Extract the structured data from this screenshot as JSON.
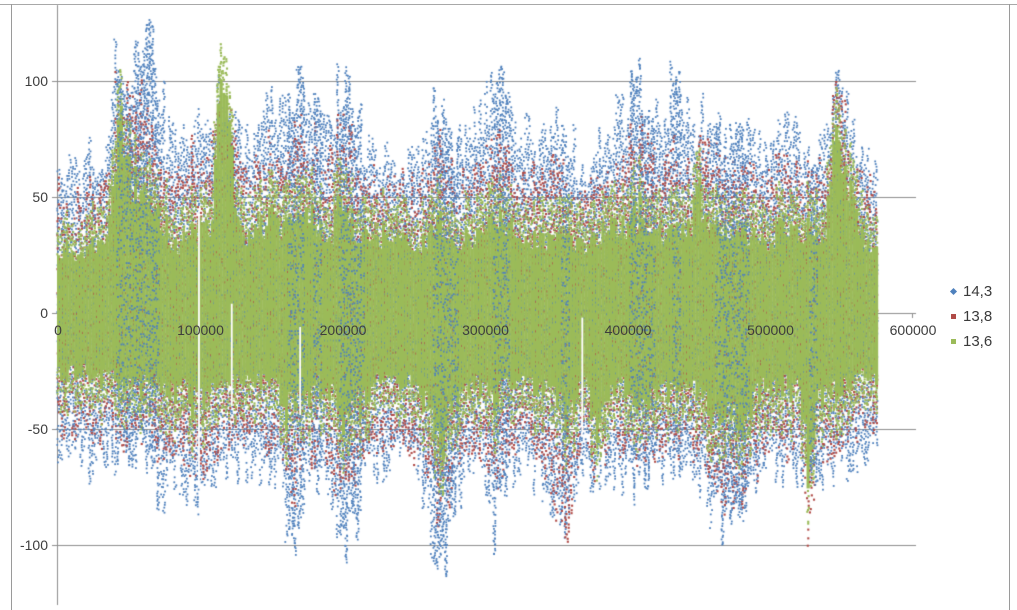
{
  "chart_data": {
    "type": "scatter",
    "title": "",
    "grid": "horizontal",
    "legend_position": "right",
    "x_axis": {
      "min": 0,
      "max": 600000,
      "tick_step": 100000,
      "tick_labels": [
        "0",
        "100000",
        "200000",
        "300000",
        "400000",
        "500000",
        "600000"
      ]
    },
    "y_axis": {
      "min": -133,
      "max": 133,
      "tick_step": 50,
      "tick_labels": [
        "-100",
        "-50",
        "0",
        "50",
        "100"
      ]
    },
    "series": [
      {
        "name": "14,3",
        "color": "#4F81BD",
        "marker": "diamond"
      },
      {
        "name": "13,8",
        "color": "#B04A47",
        "marker": "square"
      },
      {
        "name": "13,6",
        "color": "#9BBB59",
        "marker": "square"
      }
    ],
    "data_x_extent": [
      0,
      570000
    ],
    "envelope_note": "per-6000-unit amplitude envelope [green_hi,green_lo,red_hi,red_lo,blue_hi,blue_lo] estimated from plot",
    "envelope": {
      "x_start": 0,
      "x_step": 6000,
      "columns": [
        [
          42,
          -40,
          54,
          -50,
          66,
          -62
        ],
        [
          40,
          -38,
          50,
          -48,
          62,
          -58
        ],
        [
          38,
          -40,
          46,
          -50,
          58,
          -60
        ],
        [
          40,
          -36,
          48,
          -46,
          60,
          -56
        ],
        [
          44,
          -40,
          54,
          -50,
          72,
          -66
        ],
        [
          40,
          -42,
          50,
          -52,
          64,
          -64
        ],
        [
          46,
          -40,
          58,
          -50,
          76,
          -62
        ],
        [
          95,
          -46,
          100,
          -54,
          108,
          -62
        ],
        [
          88,
          -44,
          92,
          -52,
          100,
          -60
        ],
        [
          70,
          -42,
          85,
          -50,
          112,
          -58
        ],
        [
          78,
          -46,
          98,
          -55,
          126,
          -62
        ],
        [
          72,
          -44,
          90,
          -52,
          118,
          -60
        ],
        [
          58,
          -46,
          70,
          -58,
          95,
          -83
        ],
        [
          50,
          -50,
          62,
          -62,
          80,
          -80
        ],
        [
          44,
          -48,
          56,
          -60,
          68,
          -70
        ],
        [
          46,
          -50,
          60,
          -62,
          74,
          -72
        ],
        [
          50,
          -55,
          68,
          -66,
          84,
          -78
        ],
        [
          48,
          -56,
          66,
          -68,
          82,
          -80
        ],
        [
          52,
          -50,
          70,
          -62,
          86,
          -74
        ],
        [
          106,
          -44,
          100,
          -54,
          90,
          -64
        ],
        [
          100,
          -42,
          95,
          -52,
          88,
          -62
        ],
        [
          60,
          -46,
          72,
          -56,
          85,
          -66
        ],
        [
          50,
          -44,
          62,
          -54,
          76,
          -64
        ],
        [
          46,
          -46,
          58,
          -56,
          72,
          -66
        ],
        [
          52,
          -44,
          66,
          -54,
          84,
          -64
        ],
        [
          56,
          -46,
          70,
          -56,
          88,
          -66
        ],
        [
          50,
          -48,
          64,
          -58,
          80,
          -68
        ],
        [
          55,
          -60,
          72,
          -75,
          92,
          -90
        ],
        [
          60,
          -58,
          78,
          -72,
          100,
          -92
        ],
        [
          54,
          -50,
          70,
          -62,
          94,
          -74
        ],
        [
          56,
          -48,
          72,
          -60,
          98,
          -70
        ],
        [
          50,
          -46,
          64,
          -56,
          84,
          -66
        ],
        [
          48,
          -50,
          62,
          -62,
          78,
          -72
        ],
        [
          62,
          -60,
          80,
          -74,
          97,
          -93
        ],
        [
          58,
          -62,
          76,
          -76,
          92,
          -95
        ],
        [
          52,
          -58,
          68,
          -70,
          84,
          -88
        ],
        [
          46,
          -50,
          58,
          -60,
          72,
          -70
        ],
        [
          44,
          -46,
          56,
          -56,
          68,
          -66
        ],
        [
          48,
          -44,
          60,
          -54,
          74,
          -64
        ],
        [
          42,
          -46,
          52,
          -56,
          64,
          -66
        ],
        [
          44,
          -44,
          54,
          -54,
          66,
          -64
        ],
        [
          46,
          -46,
          58,
          -56,
          70,
          -66
        ],
        [
          42,
          -48,
          52,
          -58,
          64,
          -68
        ],
        [
          44,
          -52,
          56,
          -64,
          68,
          -76
        ],
        [
          50,
          -66,
          66,
          -80,
          84,
          -102
        ],
        [
          52,
          -70,
          70,
          -82,
          88,
          -108
        ],
        [
          48,
          -60,
          62,
          -74,
          78,
          -90
        ],
        [
          44,
          -50,
          56,
          -62,
          70,
          -74
        ],
        [
          46,
          -46,
          58,
          -56,
          72,
          -66
        ],
        [
          50,
          -44,
          64,
          -54,
          80,
          -64
        ],
        [
          54,
          -48,
          68,
          -60,
          86,
          -72
        ],
        [
          58,
          -56,
          74,
          -68,
          103,
          -95
        ],
        [
          56,
          -50,
          72,
          -62,
          96,
          -76
        ],
        [
          50,
          -46,
          64,
          -56,
          84,
          -66
        ],
        [
          46,
          -44,
          58,
          -54,
          74,
          -64
        ],
        [
          48,
          -46,
          60,
          -56,
          76,
          -66
        ],
        [
          44,
          -48,
          56,
          -58,
          68,
          -68
        ],
        [
          46,
          -50,
          58,
          -62,
          72,
          -72
        ],
        [
          50,
          -54,
          64,
          -70,
          78,
          -80
        ],
        [
          48,
          -60,
          64,
          -93,
          76,
          -85
        ],
        [
          46,
          -58,
          60,
          -88,
          74,
          -82
        ],
        [
          44,
          -48,
          54,
          -58,
          66,
          -68
        ],
        [
          40,
          -44,
          48,
          -54,
          60,
          -64
        ],
        [
          46,
          -68,
          56,
          -66,
          68,
          -72
        ],
        [
          48,
          -50,
          60,
          -60,
          74,
          -70
        ],
        [
          50,
          -46,
          64,
          -56,
          80,
          -66
        ],
        [
          52,
          -48,
          66,
          -58,
          84,
          -68
        ],
        [
          56,
          -50,
          72,
          -62,
          96,
          -72
        ],
        [
          60,
          -52,
          78,
          -64,
          100,
          -74
        ],
        [
          58,
          -50,
          76,
          -62,
          98,
          -72
        ],
        [
          52,
          -48,
          68,
          -58,
          88,
          -68
        ],
        [
          50,
          -46,
          64,
          -56,
          84,
          -66
        ],
        [
          54,
          -48,
          70,
          -58,
          96,
          -68
        ],
        [
          52,
          -46,
          68,
          -56,
          90,
          -66
        ],
        [
          48,
          -48,
          62,
          -58,
          80,
          -68
        ],
        [
          68,
          -50,
          74,
          -60,
          84,
          -70
        ],
        [
          60,
          -52,
          70,
          -64,
          80,
          -74
        ],
        [
          52,
          -62,
          66,
          -76,
          76,
          -89
        ],
        [
          50,
          -64,
          64,
          -78,
          74,
          -88
        ],
        [
          48,
          -60,
          62,
          -74,
          72,
          -86
        ],
        [
          50,
          -62,
          64,
          -76,
          76,
          -87
        ],
        [
          48,
          -58,
          60,
          -72,
          72,
          -84
        ],
        [
          46,
          -50,
          58,
          -62,
          70,
          -74
        ],
        [
          44,
          -46,
          56,
          -56,
          68,
          -66
        ],
        [
          48,
          -44,
          60,
          -54,
          74,
          -64
        ],
        [
          52,
          -46,
          66,
          -56,
          82,
          -66
        ],
        [
          50,
          -48,
          64,
          -58,
          80,
          -68
        ],
        [
          46,
          -50,
          58,
          -60,
          72,
          -70
        ],
        [
          50,
          -90,
          60,
          -97,
          68,
          -70
        ],
        [
          48,
          -52,
          60,
          -62,
          72,
          -72
        ],
        [
          54,
          -50,
          68,
          -60,
          84,
          -70
        ],
        [
          95,
          -48,
          88,
          -58,
          93,
          -68
        ],
        [
          90,
          -46,
          85,
          -56,
          90,
          -66
        ],
        [
          60,
          -44,
          70,
          -54,
          80,
          -64
        ],
        [
          50,
          -42,
          60,
          -50,
          72,
          -60
        ],
        [
          44,
          -40,
          52,
          -46,
          62,
          -56
        ]
      ]
    },
    "gaps": [
      {
        "x": 99000,
        "from": 44,
        "to": -72
      },
      {
        "x": 122000,
        "from": 4,
        "to": -40
      },
      {
        "x": 170000,
        "from": -6,
        "to": -44
      },
      {
        "x": 368000,
        "from": -2,
        "to": -52
      }
    ],
    "colors": {
      "gridline": "#8e8e8e",
      "axis_line": "#8e8e8e",
      "tick_label": "#3d3d3d",
      "series_blue": "#4F81BD",
      "series_red": "#B14B47",
      "series_green": "#9BBB59",
      "background": "#ffffff"
    }
  }
}
